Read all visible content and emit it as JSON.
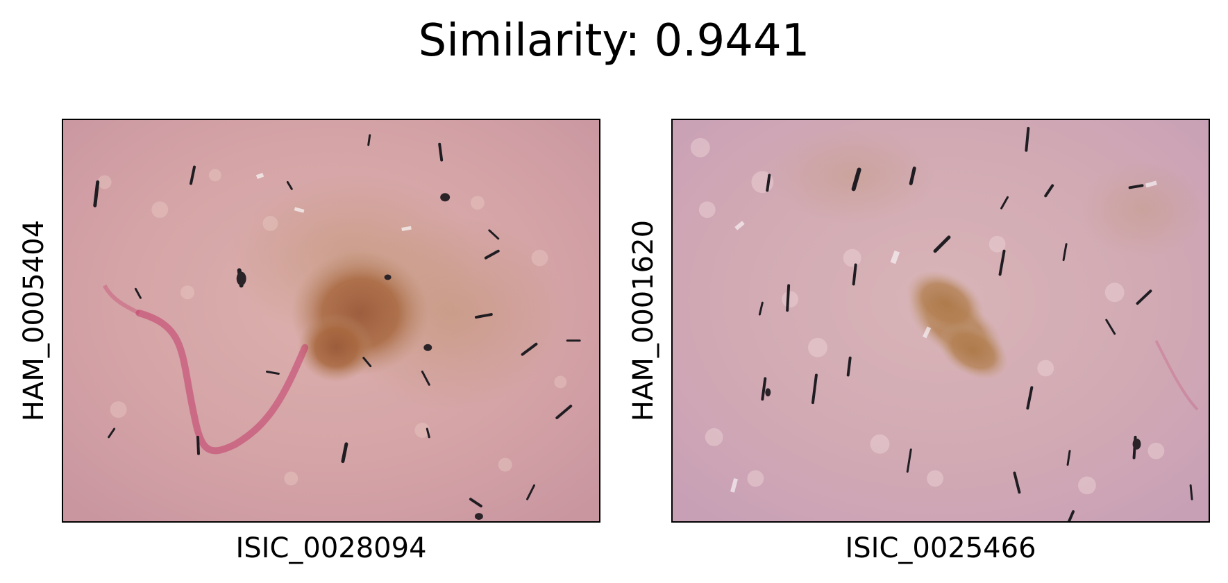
{
  "figure": {
    "title": "Similarity: 0.9441"
  },
  "panels": [
    {
      "ylabel": "HAM_0005404",
      "xlabel": "ISIC_0028094",
      "image": "dermoscopy-skin-lesion-image"
    },
    {
      "ylabel": "HAM_0001620",
      "xlabel": "ISIC_0025466",
      "image": "dermoscopy-skin-lesion-image"
    }
  ],
  "colors": {
    "skin_left": "#d7a6a8",
    "skin_right": "#d2aab5",
    "lesion_brown": "#a4683f",
    "vessel_red": "#c23a6a",
    "hair": "#1f1d22"
  }
}
